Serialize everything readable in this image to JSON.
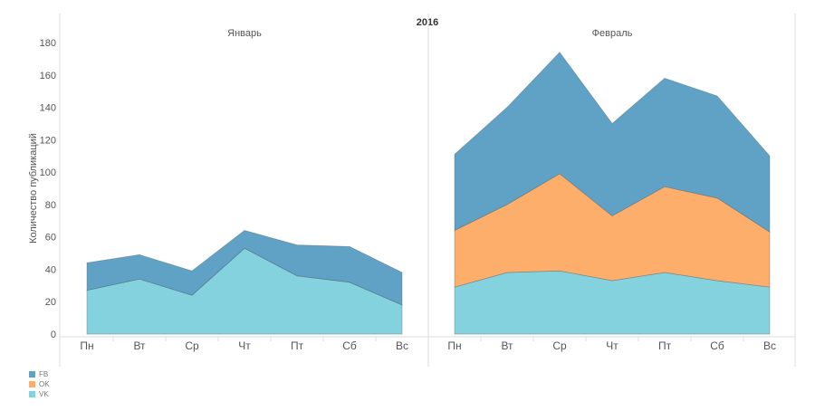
{
  "chart_data": {
    "type": "area",
    "stacked": true,
    "title": "2016",
    "ylabel": "Количество публикаций",
    "ylim": [
      0,
      180
    ],
    "yticks": [
      0,
      20,
      40,
      60,
      80,
      100,
      120,
      140,
      160,
      180
    ],
    "categories": [
      "Пн",
      "Вт",
      "Ср",
      "Чт",
      "Пт",
      "Сб",
      "Вс"
    ],
    "legend_position": "bottom-left",
    "colors": {
      "FB": "#5fa2c6",
      "OK": "#fdae6b",
      "VK": "#85d2df"
    },
    "panels": [
      {
        "title": "Январь",
        "series": [
          {
            "name": "VK",
            "values": [
              27,
              34,
              24,
              53,
              36,
              32,
              18
            ]
          },
          {
            "name": "OK",
            "values": [
              0,
              0,
              0,
              0,
              0,
              0,
              0
            ]
          },
          {
            "name": "FB",
            "values": [
              17,
              15,
              15,
              11,
              19,
              22,
              20
            ]
          }
        ]
      },
      {
        "title": "Февраль",
        "series": [
          {
            "name": "VK",
            "values": [
              29,
              38,
              39,
              33,
              38,
              33,
              29
            ]
          },
          {
            "name": "OK",
            "values": [
              35,
              42,
              60,
              40,
              53,
              51,
              34
            ]
          },
          {
            "name": "FB",
            "values": [
              47,
              60,
              75,
              57,
              67,
              63,
              47
            ]
          }
        ]
      }
    ],
    "legend": [
      "FB",
      "OK",
      "VK"
    ]
  }
}
